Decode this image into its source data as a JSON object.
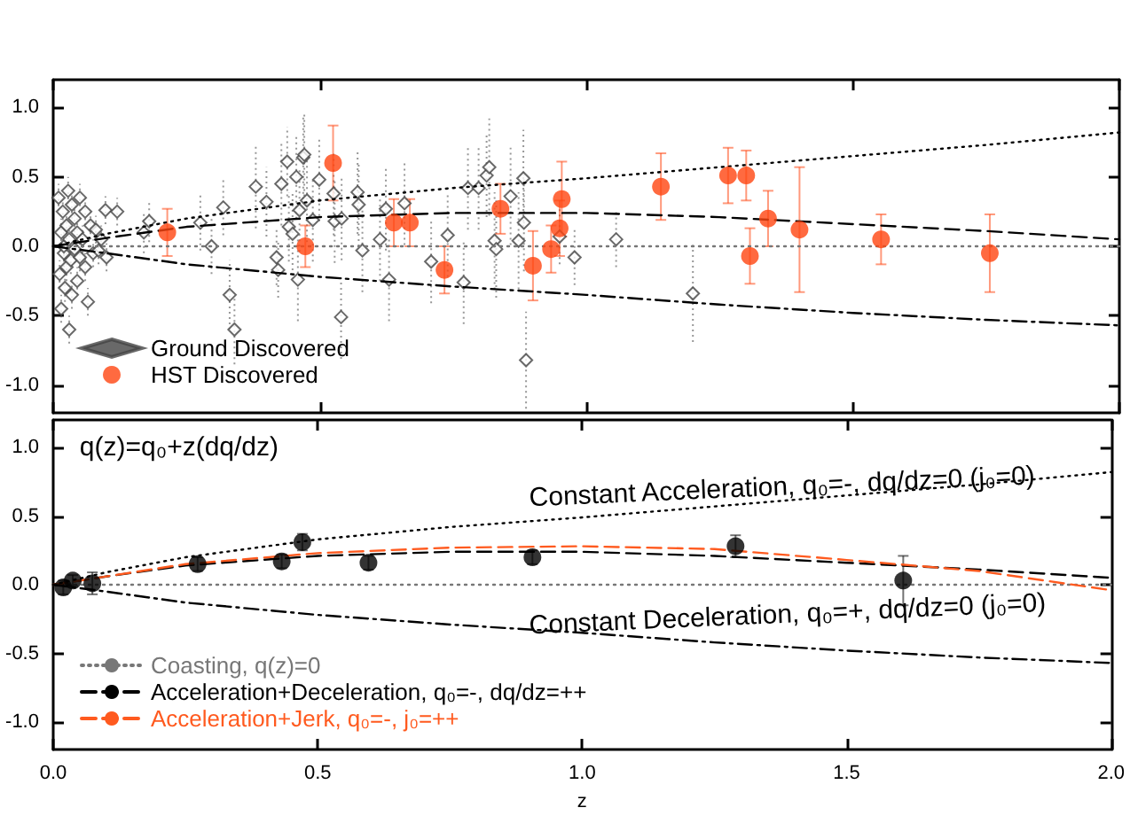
{
  "chart_data": [
    {
      "type": "scatter",
      "xlim": [
        0,
        2
      ],
      "ylim": [
        -1.2,
        1.2
      ],
      "xticks": [
        0,
        0.5,
        1,
        1.5,
        2
      ],
      "yticks": [
        {
          "value": -1,
          "label": "-1.0"
        },
        {
          "value": -0.5,
          "label": "-0.5"
        },
        {
          "value": 0,
          "label": "0.0"
        },
        {
          "value": 0.5,
          "label": "0.5"
        },
        {
          "value": 1,
          "label": "1.0"
        }
      ],
      "tick_labels": "y",
      "legend": "bottom left",
      "grid": false,
      "series": [
        {
          "name": "Ground Discovered",
          "color": "#444444",
          "marker": "diamond",
          "x": [
            0.01,
            0.012,
            0.015,
            0.015,
            0.018,
            0.02,
            0.02,
            0.022,
            0.025,
            0.025,
            0.028,
            0.03,
            0.03,
            0.033,
            0.035,
            0.035,
            0.04,
            0.04,
            0.045,
            0.045,
            0.05,
            0.05,
            0.055,
            0.06,
            0.06,
            0.065,
            0.07,
            0.075,
            0.08,
            0.085,
            0.09,
            0.1,
            0.098,
            0.12,
            0.17,
            0.18,
            0.276,
            0.297,
            0.319,
            0.331,
            0.34,
            0.38,
            0.4,
            0.419,
            0.422,
            0.428,
            0.439,
            0.442,
            0.449,
            0.456,
            0.459,
            0.462,
            0.469,
            0.471,
            0.476,
            0.487,
            0.499,
            0.526,
            0.528,
            0.54,
            0.541,
            0.571,
            0.573,
            0.58,
            0.613,
            0.624,
            0.63,
            0.659,
            0.709,
            0.74,
            0.77,
            0.778,
            0.798,
            0.813,
            0.818,
            0.828,
            0.831,
            0.858,
            0.873,
            0.882,
            0.883,
            0.887,
            0.95,
            0.978,
            1.056,
            1.2
          ],
          "values": [
            0.35,
            -0.2,
            0.1,
            -0.45,
            0.25,
            -0.05,
            0.0,
            -0.3,
            0.15,
            -0.15,
            0.4,
            0.05,
            -0.6,
            -0.1,
            0.3,
            -0.35,
            0.2,
            -0.02,
            0.1,
            -0.25,
            0.35,
            -0.08,
            0.05,
            0.25,
            -0.15,
            -0.4,
            0.15,
            -0.05,
            0.12,
            -0.03,
            0.05,
            -0.08,
            0.26,
            0.25,
            0.1,
            0.18,
            0.17,
            0.0,
            0.28,
            -0.35,
            -0.6,
            0.43,
            0.32,
            -0.08,
            -0.17,
            0.45,
            0.61,
            0.14,
            0.09,
            0.5,
            -0.24,
            0.26,
            0.64,
            0.66,
            0.33,
            0.19,
            0.48,
            0.38,
            0.18,
            -0.51,
            0.2,
            0.39,
            0.3,
            -0.03,
            0.05,
            0.27,
            -0.24,
            0.31,
            -0.11,
            0.08,
            -0.26,
            0.42,
            0.42,
            0.51,
            0.57,
            0.04,
            -0.02,
            0.36,
            0.04,
            0.49,
            0.17,
            -0.82,
            0.07,
            -0.08,
            0.05,
            -0.34
          ],
          "errors": [
            0.1,
            0.1,
            0.1,
            0.1,
            0.1,
            0.1,
            0.1,
            0.1,
            0.1,
            0.1,
            0.1,
            0.1,
            0.1,
            0.1,
            0.1,
            0.1,
            0.1,
            0.1,
            0.1,
            0.1,
            0.1,
            0.1,
            0.1,
            0.1,
            0.1,
            0.1,
            0.1,
            0.1,
            0.1,
            0.1,
            0.1,
            0.1,
            0.1,
            0.1,
            0.15,
            0.15,
            0.2,
            0.2,
            0.2,
            0.25,
            0.25,
            0.3,
            0.25,
            0.2,
            0.2,
            0.3,
            0.25,
            0.25,
            0.3,
            0.3,
            0.3,
            0.3,
            0.3,
            0.3,
            0.3,
            0.3,
            0.3,
            0.3,
            0.3,
            0.3,
            0.3,
            0.3,
            0.3,
            0.3,
            0.3,
            0.3,
            0.3,
            0.3,
            0.3,
            0.3,
            0.3,
            0.3,
            0.3,
            0.3,
            0.35,
            0.35,
            0.35,
            0.35,
            0.35,
            0.35,
            0.35,
            0.35,
            0.2,
            0.2,
            0.2,
            0.35
          ]
        },
        {
          "name": "HST Discovered",
          "color": "#ff4510",
          "marker": "circle",
          "x": [
            0.214,
            0.473,
            0.525,
            0.639,
            0.669,
            0.734,
            0.839,
            0.9,
            0.934,
            0.95,
            0.954,
            1.14,
            1.266,
            1.3,
            1.307,
            1.341,
            1.4,
            1.553,
            1.757
          ],
          "values": [
            0.1,
            0.0,
            0.6,
            0.17,
            0.17,
            -0.17,
            0.27,
            -0.14,
            -0.02,
            0.13,
            0.34,
            0.43,
            0.51,
            0.51,
            -0.07,
            0.2,
            0.12,
            0.05,
            -0.05
          ],
          "errors": [
            0.17,
            0.15,
            0.27,
            0.17,
            0.17,
            0.17,
            0.18,
            0.25,
            0.17,
            0.2,
            0.27,
            0.24,
            0.2,
            0.18,
            0.2,
            0.2,
            0.45,
            0.18,
            0.28
          ]
        },
        {
          "type": "line",
          "color": "#777777",
          "line_style": "dotted",
          "x": [
            0,
            2
          ],
          "values": [
            0,
            0
          ]
        },
        {
          "type": "line",
          "color": "#000000",
          "line_style": "dotted",
          "x": [
            0,
            0.1,
            0.25,
            0.5,
            0.75,
            1,
            1.25,
            1.5,
            1.75,
            2
          ],
          "values": [
            0,
            0.09,
            0.2,
            0.33,
            0.42,
            0.49,
            0.57,
            0.65,
            0.73,
            0.82
          ]
        },
        {
          "type": "line",
          "color": "#000000",
          "line_style": "dashed",
          "x": [
            0,
            0.1,
            0.25,
            0.5,
            0.75,
            1,
            1.25,
            1.5,
            1.75,
            2
          ],
          "values": [
            0,
            0.06,
            0.14,
            0.21,
            0.24,
            0.24,
            0.21,
            0.16,
            0.11,
            0.05
          ]
        },
        {
          "type": "line",
          "color": "#000000",
          "line_style": "dashdot",
          "x": [
            0,
            0.1,
            0.25,
            0.5,
            0.75,
            1,
            1.25,
            1.5,
            1.75,
            2
          ],
          "values": [
            0,
            -0.05,
            -0.13,
            -0.22,
            -0.29,
            -0.35,
            -0.42,
            -0.48,
            -0.53,
            -0.57
          ]
        }
      ]
    },
    {
      "type": "line",
      "xlim": [
        0,
        2
      ],
      "ylim": [
        -1.2,
        1.2
      ],
      "xlabel": "z",
      "xticks": [
        {
          "value": 0,
          "label": "0.0"
        },
        {
          "value": 0.5,
          "label": "0.5"
        },
        {
          "value": 1,
          "label": "1.0"
        },
        {
          "value": 1.5,
          "label": "1.5"
        },
        {
          "value": 2,
          "label": "2.0"
        }
      ],
      "yticks": [
        {
          "value": -1,
          "label": "-1.0"
        },
        {
          "value": -0.5,
          "label": "-0.5"
        },
        {
          "value": 0,
          "label": "0.0"
        },
        {
          "value": 0.5,
          "label": "0.5"
        },
        {
          "value": 1,
          "label": "1.0"
        }
      ],
      "legend": "bottom left",
      "grid": false,
      "annotations": [
        "q(z)=q₀+z(dq/dz)",
        "Constant Acceleration, q₀=-, dq/dz=0 (j₀=0)",
        "Constant Deceleration, q₀=+, dq/dz=0 (j₀=0)"
      ],
      "series": [
        {
          "type": "scatter",
          "color": "#000000",
          "marker": "circle",
          "x": [
            0.019,
            0.037,
            0.074,
            0.273,
            0.432,
            0.471,
            0.596,
            0.906,
            1.29,
            1.607
          ],
          "values": [
            -0.02,
            0.03,
            0.01,
            0.15,
            0.17,
            0.31,
            0.16,
            0.2,
            0.28,
            0.03
          ],
          "errors": [
            0.05,
            0.04,
            0.08,
            0.05,
            0.05,
            0.06,
            0.05,
            0.05,
            0.08,
            0.18
          ]
        },
        {
          "name": "Coasting, q(z)=0",
          "color": "#777777",
          "line_style": "dotted",
          "x": [
            0,
            2
          ],
          "values": [
            0,
            0
          ]
        },
        {
          "name": "Acceleration+Deceleration, q₀=-, dq/dz=++",
          "color": "#000000",
          "line_style": "dashed",
          "x": [
            0,
            0.1,
            0.25,
            0.5,
            0.75,
            1,
            1.25,
            1.5,
            1.75,
            2
          ],
          "values": [
            0,
            0.06,
            0.14,
            0.21,
            0.24,
            0.24,
            0.21,
            0.16,
            0.11,
            0.05
          ]
        },
        {
          "name": "Acceleration+Jerk, q₀=-, j₀=++",
          "color": "#ff5a1f",
          "line_style": "dashed",
          "x": [
            0,
            0.25,
            0.5,
            0.75,
            1,
            1.25,
            1.5,
            1.75,
            2
          ],
          "values": [
            0,
            0.15,
            0.23,
            0.27,
            0.28,
            0.26,
            0.18,
            0.1,
            -0.04
          ]
        },
        {
          "color": "#000000",
          "line_style": "dotted",
          "x": [
            0,
            0.1,
            0.25,
            0.5,
            0.75,
            1,
            1.25,
            1.5,
            1.75,
            2
          ],
          "values": [
            0,
            0.09,
            0.2,
            0.33,
            0.42,
            0.49,
            0.57,
            0.65,
            0.73,
            0.82
          ]
        },
        {
          "color": "#000000",
          "line_style": "dashdot",
          "x": [
            0,
            0.1,
            0.25,
            0.5,
            0.75,
            1,
            1.25,
            1.5,
            1.75,
            2
          ],
          "values": [
            0,
            -0.05,
            -0.13,
            -0.22,
            -0.29,
            -0.35,
            -0.42,
            -0.48,
            -0.53,
            -0.57
          ]
        }
      ]
    }
  ]
}
